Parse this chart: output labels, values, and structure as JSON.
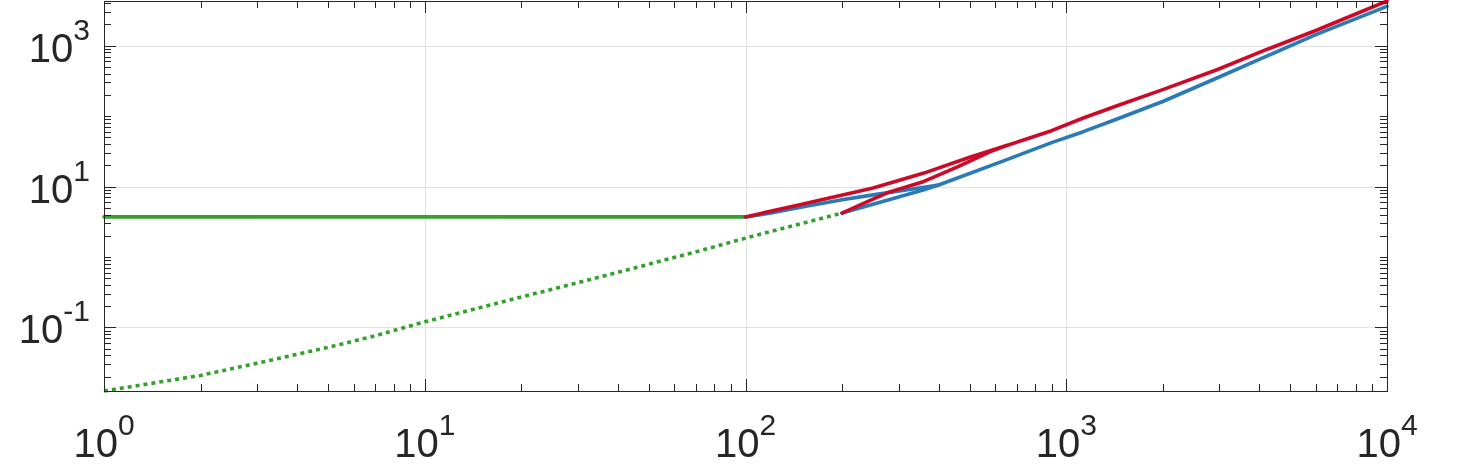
{
  "chart_data": {
    "type": "line",
    "log": "xy",
    "grid": true,
    "xlim": [
      1,
      10000
    ],
    "ylim": [
      0.0125,
      4300
    ],
    "xticks": [
      {
        "value": 1,
        "label": "10$^{0}$"
      },
      {
        "value": 2,
        "label": null
      },
      {
        "value": 3,
        "label": null
      },
      {
        "value": 4,
        "label": null
      },
      {
        "value": 5,
        "label": null
      },
      {
        "value": 6,
        "label": null
      },
      {
        "value": 7,
        "label": null
      },
      {
        "value": 8,
        "label": null
      },
      {
        "value": 9,
        "label": null
      },
      {
        "value": 10,
        "label": "10$^{1}$"
      },
      {
        "value": 20,
        "label": null
      },
      {
        "value": 30,
        "label": null
      },
      {
        "value": 40,
        "label": null
      },
      {
        "value": 50,
        "label": null
      },
      {
        "value": 60,
        "label": null
      },
      {
        "value": 70,
        "label": null
      },
      {
        "value": 80,
        "label": null
      },
      {
        "value": 90,
        "label": null
      },
      {
        "value": 100,
        "label": "10$^{2}$"
      },
      {
        "value": 200,
        "label": null
      },
      {
        "value": 300,
        "label": null
      },
      {
        "value": 400,
        "label": null
      },
      {
        "value": 500,
        "label": null
      },
      {
        "value": 600,
        "label": null
      },
      {
        "value": 700,
        "label": null
      },
      {
        "value": 800,
        "label": null
      },
      {
        "value": 900,
        "label": null
      },
      {
        "value": 1000,
        "label": "10$^{3}$"
      },
      {
        "value": 2000,
        "label": null
      },
      {
        "value": 3000,
        "label": null
      },
      {
        "value": 4000,
        "label": null
      },
      {
        "value": 5000,
        "label": null
      },
      {
        "value": 6000,
        "label": null
      },
      {
        "value": 7000,
        "label": null
      },
      {
        "value": 8000,
        "label": null
      },
      {
        "value": 9000,
        "label": null
      },
      {
        "value": 10000,
        "label": "10$^{4}$"
      }
    ],
    "yticks": [
      {
        "value": 0.02,
        "label": null
      },
      {
        "value": 0.03,
        "label": null
      },
      {
        "value": 0.04,
        "label": null
      },
      {
        "value": 0.05,
        "label": null
      },
      {
        "value": 0.06,
        "label": null
      },
      {
        "value": 0.07,
        "label": null
      },
      {
        "value": 0.08,
        "label": null
      },
      {
        "value": 0.09,
        "label": null
      },
      {
        "value": 0.1,
        "label": "10$^{-1}$"
      },
      {
        "value": 0.2,
        "label": null
      },
      {
        "value": 0.3,
        "label": null
      },
      {
        "value": 0.4,
        "label": null
      },
      {
        "value": 0.5,
        "label": null
      },
      {
        "value": 0.6,
        "label": null
      },
      {
        "value": 0.7,
        "label": null
      },
      {
        "value": 0.8,
        "label": null
      },
      {
        "value": 0.9,
        "label": null
      },
      {
        "value": 1,
        "label": null
      },
      {
        "value": 2,
        "label": null
      },
      {
        "value": 3,
        "label": null
      },
      {
        "value": 4,
        "label": null
      },
      {
        "value": 5,
        "label": null
      },
      {
        "value": 6,
        "label": null
      },
      {
        "value": 7,
        "label": null
      },
      {
        "value": 8,
        "label": null
      },
      {
        "value": 9,
        "label": null
      },
      {
        "value": 10,
        "label": "10$^{1}$"
      },
      {
        "value": 20,
        "label": null
      },
      {
        "value": 30,
        "label": null
      },
      {
        "value": 40,
        "label": null
      },
      {
        "value": 50,
        "label": null
      },
      {
        "value": 60,
        "label": null
      },
      {
        "value": 70,
        "label": null
      },
      {
        "value": 80,
        "label": null
      },
      {
        "value": 90,
        "label": null
      },
      {
        "value": 100,
        "label": null
      },
      {
        "value": 200,
        "label": null
      },
      {
        "value": 300,
        "label": null
      },
      {
        "value": 400,
        "label": null
      },
      {
        "value": 500,
        "label": null
      },
      {
        "value": 600,
        "label": null
      },
      {
        "value": 700,
        "label": null
      },
      {
        "value": 800,
        "label": null
      },
      {
        "value": 900,
        "label": null
      },
      {
        "value": 1000,
        "label": "10$^{3}$"
      },
      {
        "value": 2000,
        "label": null
      },
      {
        "value": 3000,
        "label": null
      },
      {
        "value": 4000,
        "label": null
      }
    ],
    "series": [
      {
        "color": "#33a12c",
        "x": [
          1,
          100
        ],
        "values": [
          3.7,
          3.7
        ]
      },
      {
        "color": "#33a12c",
        "line_style": "dotted",
        "x": [
          1,
          2,
          3,
          5,
          7,
          10,
          20,
          30,
          50,
          70,
          100,
          150,
          200
        ],
        "values": [
          0.0125,
          0.0208,
          0.031,
          0.052,
          0.076,
          0.12,
          0.27,
          0.43,
          0.79,
          1.18,
          1.85,
          3.0,
          4.2
        ]
      },
      {
        "color": "#2a7ab8",
        "x": [
          100,
          120,
          150,
          200,
          250,
          320,
          400,
          650,
          900,
          1130,
          1440,
          2000,
          2950,
          4200,
          6000,
          10000
        ],
        "values": [
          3.7,
          4.2,
          5.1,
          6.5,
          7.6,
          9.0,
          10.5,
          23.9,
          42,
          60,
          91,
          161,
          347,
          703,
          1430,
          3600
        ]
      },
      {
        "color": "#2a7ab8",
        "x": [
          200,
          280,
          360,
          400
        ],
        "values": [
          4.2,
          6.5,
          9.0,
          10.5
        ]
      },
      {
        "color": "#cc0a28",
        "x": [
          100,
          150,
          250,
          360,
          500,
          740,
          900,
          1130,
          1440,
          2000,
          2950,
          4200,
          6000,
          10000
        ],
        "values": [
          3.7,
          5.6,
          9.5,
          15.5,
          26,
          46,
          62,
          94,
          140,
          237,
          455,
          875,
          1640,
          4300
        ]
      },
      {
        "color": "#cc0a28",
        "x": [
          200,
          240,
          280,
          360,
          460,
          580,
          650
        ],
        "values": [
          4.2,
          6.1,
          8.3,
          11.8,
          19.2,
          31.4,
          38
        ]
      }
    ]
  }
}
